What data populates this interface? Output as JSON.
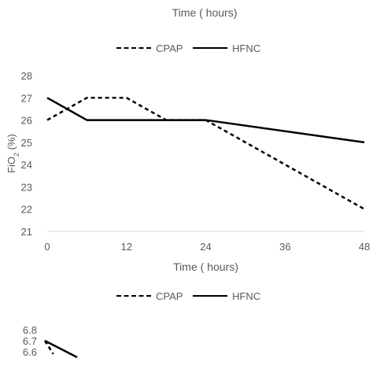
{
  "top_axis_title": "Time ( hours)",
  "legend_top": {
    "items": [
      {
        "label": "CPAP",
        "style": "dashed"
      },
      {
        "label": "HFNC",
        "style": "solid"
      }
    ]
  },
  "legend_bottom": {
    "items": [
      {
        "label": "CPAP",
        "style": "dashed"
      },
      {
        "label": "HFNC",
        "style": "solid"
      }
    ]
  },
  "colors": {
    "series": "#000000",
    "text": "#595959",
    "axis": "#d9d9d9"
  },
  "chart_data": [
    {
      "type": "line",
      "xlabel": "Time ( hours)",
      "ylabel": "FiO2 (%)",
      "xlim": [
        0,
        48
      ],
      "ylim": [
        21,
        28
      ],
      "xticks": [
        "0",
        "12",
        "24",
        "36",
        "48"
      ],
      "yticks": [
        "21",
        "22",
        "23",
        "24",
        "25",
        "26",
        "27",
        "28"
      ],
      "grid": false,
      "legend": "top",
      "series": [
        {
          "name": "CPAP",
          "style": "dashed",
          "x": [
            0,
            6,
            12,
            18,
            24,
            48
          ],
          "y": [
            26,
            27,
            27,
            26,
            26,
            22
          ]
        },
        {
          "name": "HFNC",
          "style": "solid",
          "x": [
            0,
            6,
            24,
            48
          ],
          "y": [
            27,
            26,
            26,
            25
          ]
        }
      ]
    },
    {
      "type": "line",
      "xlabel": "",
      "ylabel": "",
      "yticks": [
        "6.8",
        "6.7",
        "6.6"
      ],
      "legend": "top",
      "series": [
        {
          "name": "CPAP",
          "style": "dashed",
          "x": [
            0,
            1.3
          ],
          "y": [
            6.7,
            6.58
          ]
        },
        {
          "name": "HFNC",
          "style": "solid",
          "x": [
            0,
            5
          ],
          "y": [
            6.7,
            6.55
          ]
        }
      ]
    }
  ]
}
